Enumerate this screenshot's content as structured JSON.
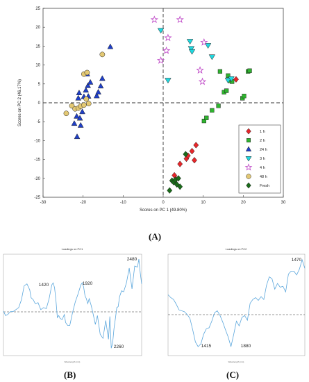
{
  "panels": {
    "a": "(A)",
    "b": "(B)",
    "c": "(C)"
  },
  "chart_data": [
    {
      "type": "scatter",
      "xlabel": "Scores on PC 1 (49.80%)",
      "ylabel": "Scores on PC 2 (46.17%)",
      "xlim": [
        -30,
        30
      ],
      "ylim": [
        -25,
        25
      ],
      "xticks": [
        -30,
        -20,
        -10,
        0,
        10,
        20,
        30
      ],
      "yticks": [
        -25,
        -20,
        -15,
        -10,
        -5,
        0,
        5,
        10,
        15,
        20,
        25
      ],
      "grid": false,
      "legend_position": "lower-right",
      "reference_lines": {
        "x": 0,
        "y": 0
      },
      "series": [
        {
          "name": "1 h",
          "marker": "diamond",
          "color": "#e8262a",
          "points": [
            [
              2.8,
              -19.2
            ],
            [
              3.2,
              -20.2
            ],
            [
              4.2,
              -16.2
            ],
            [
              5.8,
              -14.8
            ],
            [
              6.2,
              -14.0
            ],
            [
              7.2,
              -12.8
            ],
            [
              7.8,
              -15.2
            ],
            [
              8.2,
              -11.2
            ],
            [
              18.2,
              6.2
            ]
          ]
        },
        {
          "name": "2 h",
          "marker": "square",
          "color": "#2fb52f",
          "points": [
            [
              10.2,
              -4.8
            ],
            [
              10.8,
              -4.0
            ],
            [
              12.2,
              -2.0
            ],
            [
              13.8,
              -0.8
            ],
            [
              14.2,
              8.3
            ],
            [
              15.2,
              2.8
            ],
            [
              15.8,
              3.2
            ],
            [
              16.2,
              7.2
            ],
            [
              16.8,
              5.8
            ],
            [
              17.2,
              5.6
            ],
            [
              19.8,
              1.2
            ],
            [
              20.2,
              1.8
            ],
            [
              21.2,
              8.3
            ],
            [
              21.6,
              8.5
            ]
          ]
        },
        {
          "name": "24 h",
          "marker": "triangle",
          "color": "#1f3fc8",
          "points": [
            [
              -22.2,
              -5.5
            ],
            [
              -21.6,
              -3.6
            ],
            [
              -21.5,
              -9.0
            ],
            [
              -21.2,
              1.2
            ],
            [
              -21.0,
              2.6
            ],
            [
              -20.8,
              -4.1
            ],
            [
              -20.6,
              -6.0
            ],
            [
              -20.2,
              -2.4
            ],
            [
              -19.8,
              1.6
            ],
            [
              -19.3,
              3.3
            ],
            [
              -19.0,
              7.6
            ],
            [
              -18.8,
              4.5
            ],
            [
              -18.7,
              1.7
            ],
            [
              -18.2,
              5.4
            ],
            [
              -16.6,
              1.8
            ],
            [
              -16.2,
              2.8
            ],
            [
              -15.6,
              4.4
            ],
            [
              -15.2,
              6.4
            ],
            [
              -13.2,
              14.8
            ]
          ]
        },
        {
          "name": "3 h",
          "marker": "triangle-down",
          "color": "#1fd9e0",
          "points": [
            [
              -0.6,
              19.2
            ],
            [
              1.2,
              6.0
            ],
            [
              6.7,
              16.3
            ],
            [
              7.0,
              14.4
            ],
            [
              7.2,
              13.6
            ],
            [
              11.2,
              15.2
            ],
            [
              12.2,
              12.2
            ],
            [
              16.2,
              6.0
            ],
            [
              17.0,
              6.4
            ]
          ]
        },
        {
          "name": "4 h",
          "marker": "star",
          "color": "#c14ec9",
          "points": [
            [
              -2.2,
              22.0
            ],
            [
              -0.6,
              11.2
            ],
            [
              0.8,
              13.8
            ],
            [
              1.2,
              17.2
            ],
            [
              4.2,
              22.0
            ],
            [
              9.2,
              8.6
            ],
            [
              9.8,
              5.6
            ],
            [
              10.2,
              16.0
            ]
          ]
        },
        {
          "name": "48 h",
          "marker": "circle",
          "color": "#e3c873",
          "points": [
            [
              -24.2,
              -2.8
            ],
            [
              -22.8,
              -0.8
            ],
            [
              -22.0,
              -1.6
            ],
            [
              -21.2,
              -1.4
            ],
            [
              -20.6,
              -0.9
            ],
            [
              -19.8,
              -0.6
            ],
            [
              -19.8,
              7.6
            ],
            [
              -19.2,
              1.0
            ],
            [
              -19.0,
              8.0
            ],
            [
              -18.6,
              -0.2
            ],
            [
              -15.2,
              12.8
            ]
          ]
        },
        {
          "name": "Fresh",
          "marker": "diamond",
          "color": "#1a6b1a",
          "points": [
            [
              1.6,
              -23.2
            ],
            [
              2.2,
              -20.6
            ],
            [
              2.6,
              -21.0
            ],
            [
              3.0,
              -20.4
            ],
            [
              3.4,
              -21.6
            ],
            [
              3.8,
              -20.0
            ],
            [
              4.2,
              -22.2
            ],
            [
              5.6,
              -13.6
            ]
          ]
        }
      ]
    },
    {
      "type": "line",
      "title": "Loadings on PC1",
      "xlabel": "Wavelength (nm)",
      "color": "#5aa6dc",
      "reference_line": "dashed zero",
      "annotations": [
        "1420",
        "1920",
        "2260",
        "2480"
      ],
      "x": [
        0,
        3,
        6,
        10,
        14,
        18,
        22,
        26,
        30,
        34,
        38,
        40,
        43,
        46,
        50,
        54,
        58,
        62,
        66,
        68,
        70,
        72,
        74,
        76,
        78,
        80,
        82,
        85,
        88,
        90,
        93,
        96,
        100,
        104,
        108,
        112,
        114,
        116,
        118,
        120,
        122,
        124,
        127,
        130,
        133,
        136,
        140,
        144,
        148,
        152,
        154,
        156,
        158,
        160,
        162,
        164,
        166,
        168,
        171,
        174,
        178,
        182,
        186,
        190,
        194,
        196,
        198,
        200
      ],
      "y": [
        0.005,
        -0.004,
        -0.002,
        0.004,
        0.004,
        0.008,
        0.012,
        0.028,
        0.056,
        0.06,
        0.048,
        0.032,
        0.028,
        0.02,
        0.022,
        0.008,
        0.012,
        0.01,
        0.03,
        0.044,
        0.058,
        0.062,
        0.052,
        0.026,
        -0.008,
        -0.004,
        -0.01,
        -0.012,
        -0.002,
        -0.018,
        -0.024,
        -0.024,
        0.002,
        0.024,
        0.04,
        0.058,
        0.062,
        0.054,
        0.036,
        0.03,
        0.02,
        0.03,
        0.016,
        -0.002,
        -0.022,
        -0.004,
        -0.042,
        -0.05,
        -0.014,
        -0.052,
        -0.006,
        -0.07,
        -0.06,
        -0.03,
        -0.01,
        0.012,
        0.014,
        0.034,
        0.046,
        0.044,
        0.062,
        0.092,
        0.05,
        0.096,
        0.094,
        0.11,
        0.082,
        0.06
      ]
    },
    {
      "type": "line",
      "title": "Loadings on PC2",
      "xlabel": "Wavelength (nm)",
      "color": "#5aa6dc",
      "reference_line": "dashed zero",
      "annotations": [
        "1470",
        "1415",
        "1880"
      ],
      "x": [
        0,
        4,
        8,
        12,
        16,
        20,
        24,
        28,
        32,
        36,
        40,
        44,
        48,
        52,
        56,
        60,
        64,
        68,
        72,
        76,
        80,
        84,
        88,
        92,
        96,
        100,
        104,
        108,
        112,
        116,
        120,
        124,
        128,
        132,
        136,
        140,
        144,
        148,
        152,
        156,
        160,
        164,
        168,
        172,
        176,
        180,
        184,
        188,
        192,
        196,
        200
      ],
      "y": [
        0.044,
        0.038,
        0.034,
        0.024,
        0.012,
        0.01,
        0.008,
        0.002,
        -0.006,
        -0.03,
        -0.056,
        -0.066,
        -0.06,
        -0.04,
        -0.028,
        -0.026,
        -0.012,
        0.006,
        0.01,
        0.0,
        -0.014,
        -0.03,
        -0.046,
        -0.066,
        -0.04,
        -0.012,
        -0.022,
        -0.004,
        0.0,
        -0.01,
        0.026,
        0.034,
        0.038,
        0.032,
        0.04,
        0.034,
        0.064,
        0.082,
        0.078,
        0.056,
        0.068,
        0.06,
        0.062,
        0.05,
        0.088,
        0.094,
        0.094,
        0.086,
        0.098,
        0.118,
        0.1
      ]
    }
  ],
  "legend_items": [
    "1 h",
    "2 h",
    "24 h",
    "3 h",
    "4 h",
    "48 h",
    "Fresh"
  ]
}
